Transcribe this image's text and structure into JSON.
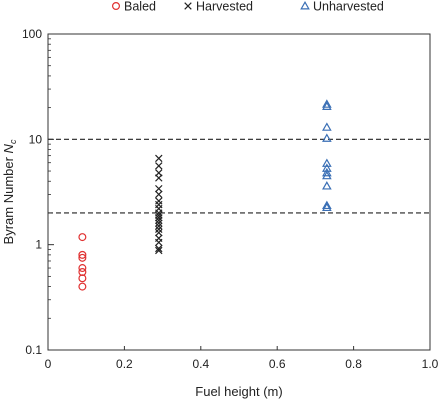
{
  "chart_data": {
    "type": "scatter",
    "xlabel": "Fuel height (m)",
    "ylabel_main": "Byram Number ",
    "ylabel_var": "N",
    "ylabel_sub": "c",
    "xlim": [
      0,
      1.0
    ],
    "ylim": [
      0.1,
      100
    ],
    "yscale": "log",
    "grid": false,
    "legend_position": "top",
    "x_ticks": [
      0,
      0.2,
      0.4,
      0.6,
      0.8,
      1.0
    ],
    "x_tick_labels": [
      "0",
      "0.2",
      "0.4",
      "0.6",
      "0.8",
      "1.0"
    ],
    "y_ticks": [
      0.1,
      1,
      10,
      100
    ],
    "y_tick_labels": [
      "0.1",
      "1",
      "10",
      "100"
    ],
    "reference_lines": [
      {
        "y": 10,
        "style": "dashed",
        "color": "#222222"
      },
      {
        "y": 2,
        "style": "dashed",
        "color": "#222222"
      }
    ],
    "series": [
      {
        "name": "Baled",
        "marker": "circle",
        "color": "#e03030",
        "points": [
          {
            "x": 0.09,
            "y": 1.18
          },
          {
            "x": 0.09,
            "y": 0.8
          },
          {
            "x": 0.09,
            "y": 0.75
          },
          {
            "x": 0.09,
            "y": 0.6
          },
          {
            "x": 0.09,
            "y": 0.55
          },
          {
            "x": 0.09,
            "y": 0.48
          },
          {
            "x": 0.09,
            "y": 0.4
          }
        ]
      },
      {
        "name": "Harvested",
        "marker": "x",
        "color": "#222222",
        "points": [
          {
            "x": 0.29,
            "y": 6.6
          },
          {
            "x": 0.29,
            "y": 5.6
          },
          {
            "x": 0.29,
            "y": 4.8
          },
          {
            "x": 0.29,
            "y": 4.3
          },
          {
            "x": 0.29,
            "y": 3.4
          },
          {
            "x": 0.29,
            "y": 3.0
          },
          {
            "x": 0.29,
            "y": 2.6
          },
          {
            "x": 0.29,
            "y": 2.4
          },
          {
            "x": 0.29,
            "y": 2.2
          },
          {
            "x": 0.29,
            "y": 2.0
          },
          {
            "x": 0.29,
            "y": 1.9
          },
          {
            "x": 0.29,
            "y": 1.8
          },
          {
            "x": 0.29,
            "y": 1.7
          },
          {
            "x": 0.29,
            "y": 1.6
          },
          {
            "x": 0.29,
            "y": 1.5
          },
          {
            "x": 0.29,
            "y": 1.4
          },
          {
            "x": 0.29,
            "y": 1.3
          },
          {
            "x": 0.29,
            "y": 1.15
          },
          {
            "x": 0.29,
            "y": 1.05
          },
          {
            "x": 0.29,
            "y": 0.92
          },
          {
            "x": 0.29,
            "y": 0.88
          }
        ]
      },
      {
        "name": "Unharvested",
        "marker": "triangle",
        "color": "#3a6fb5",
        "points": [
          {
            "x": 0.73,
            "y": 21.5
          },
          {
            "x": 0.73,
            "y": 20.5
          },
          {
            "x": 0.73,
            "y": 13.0
          },
          {
            "x": 0.73,
            "y": 10.2
          },
          {
            "x": 0.73,
            "y": 5.9
          },
          {
            "x": 0.73,
            "y": 5.3
          },
          {
            "x": 0.73,
            "y": 4.8
          },
          {
            "x": 0.73,
            "y": 4.5
          },
          {
            "x": 0.73,
            "y": 3.6
          },
          {
            "x": 0.73,
            "y": 2.35
          },
          {
            "x": 0.73,
            "y": 2.25
          }
        ]
      }
    ]
  }
}
